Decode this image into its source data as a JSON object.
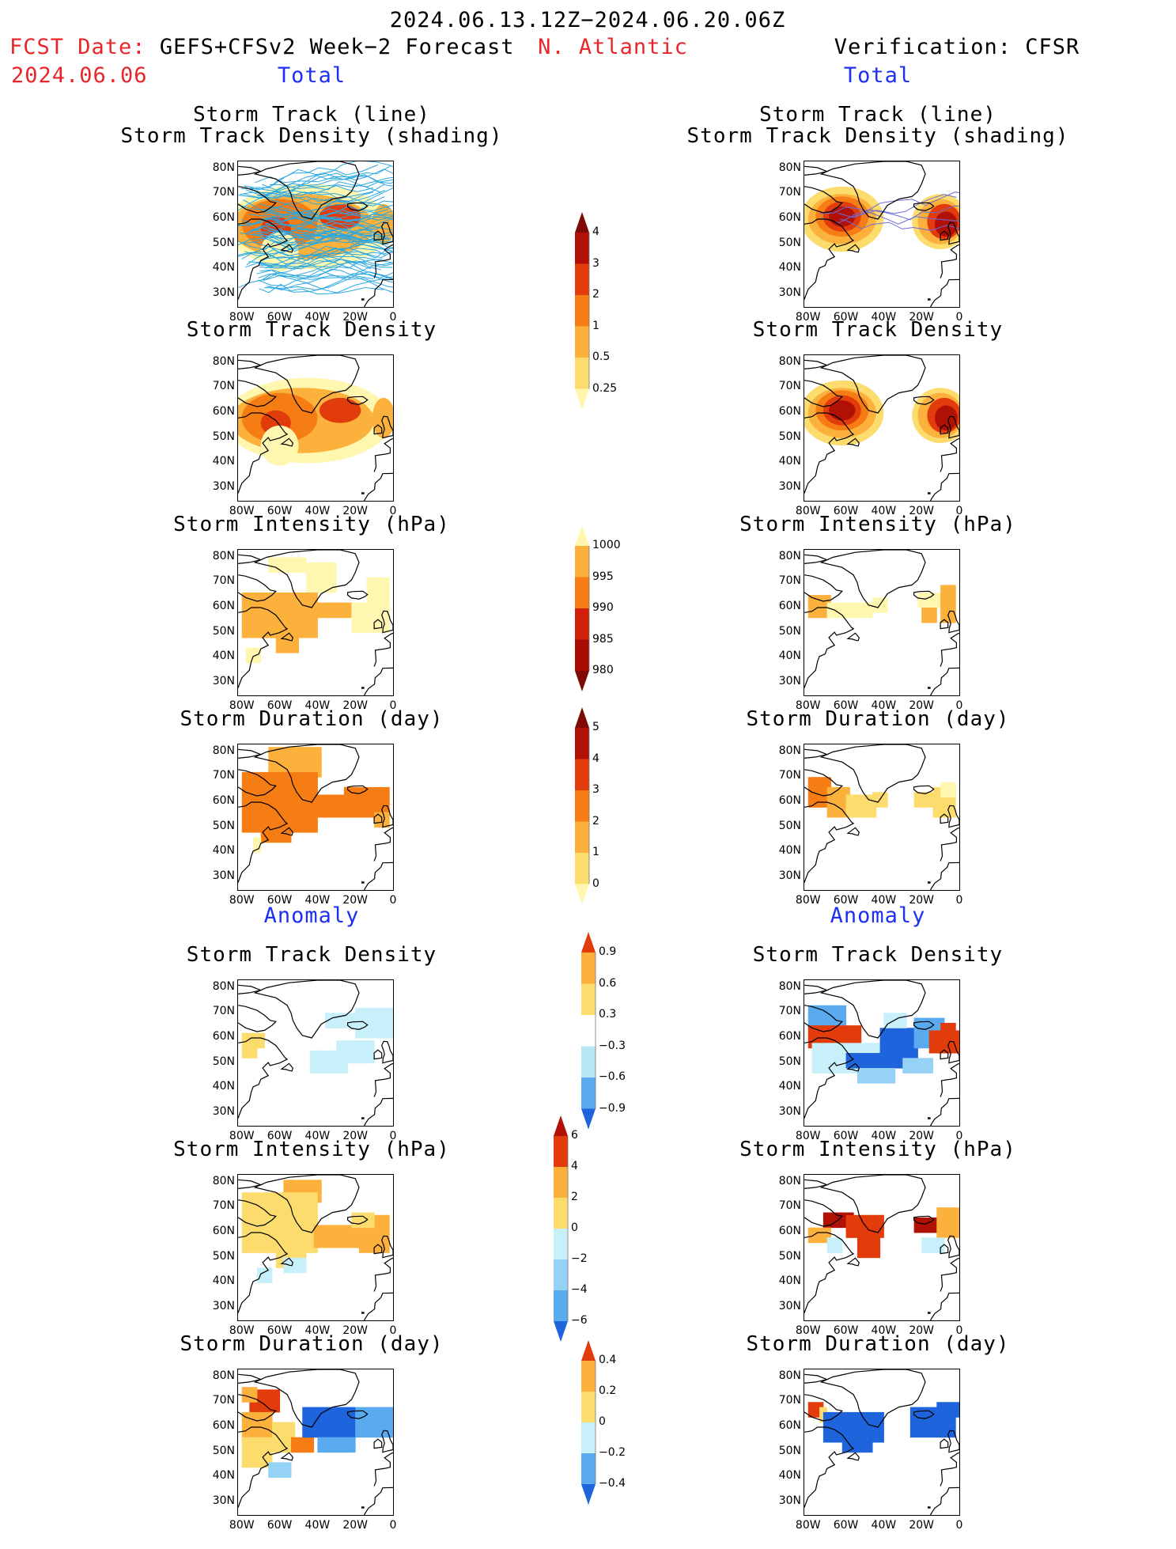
{
  "header": {
    "period": "2024.06.13.12Z−2024.06.20.06Z",
    "fcst_label": "FCST Date:",
    "fcst_model": "GEFS+CFSv2 Week−2 Forecast",
    "fcst_date": "2024.06.06",
    "region": "N. Atlantic",
    "verification": "Verification: CFSR"
  },
  "sections": {
    "total": "Total",
    "anomaly": "Anomaly"
  },
  "panel_titles": {
    "track_line": "Storm Track (line)",
    "track_density_shading": "Storm Track Density (shading)",
    "track_density": "Storm Track Density",
    "intensity": "Storm Intensity (hPa)",
    "duration": "Storm Duration (day)"
  },
  "axes": {
    "lat_labels": [
      "80N",
      "70N",
      "60N",
      "50N",
      "40N",
      "30N"
    ],
    "lon_labels": [
      "80W",
      "60W",
      "40W",
      "20W",
      "0"
    ]
  },
  "colorbars": {
    "density_total": {
      "levels": [
        "0.25",
        "0.5",
        "1",
        "2",
        "3",
        "4"
      ],
      "colors": [
        "#fff7b0",
        "#fddc6e",
        "#fbb13c",
        "#f67d14",
        "#e23c0c",
        "#b11005",
        "#7d0a03"
      ]
    },
    "intensity_total": {
      "levels": [
        "1000",
        "995",
        "990",
        "985",
        "980"
      ],
      "colors": [
        "#fff7b0",
        "#fbb13c",
        "#f67d14",
        "#d2210a",
        "#a80d04",
        "#7d0a03"
      ]
    },
    "duration_total": {
      "levels": [
        "0",
        "1",
        "2",
        "3",
        "4",
        "5"
      ],
      "colors": [
        "#fff7b0",
        "#fddc6e",
        "#fbb13c",
        "#f67d14",
        "#e23c0c",
        "#b11005",
        "#7d0a03"
      ]
    },
    "density_anom": {
      "levels": [
        "0.9",
        "0.6",
        "0.3",
        "−0.3",
        "−0.6",
        "−0.9"
      ],
      "colors": [
        "#e23c0c",
        "#fbb13c",
        "#fddc6e",
        "#ffffff",
        "#b8e6f5",
        "#5aaaf0",
        "#1e64dc"
      ]
    },
    "intensity_anom": {
      "levels": [
        "6",
        "4",
        "2",
        "0",
        "−2",
        "−4",
        "−6"
      ],
      "colors": [
        "#b11005",
        "#e23c0c",
        "#fbb13c",
        "#fddc6e",
        "#c8f0fa",
        "#96d2f5",
        "#5aaaf0",
        "#1e64dc"
      ]
    },
    "duration_anom": {
      "levels": [
        "0.4",
        "0.2",
        "0",
        "−0.2",
        "−0.4"
      ],
      "colors": [
        "#e23c0c",
        "#fbb13c",
        "#fddc6e",
        "#c8f0fa",
        "#5aaaf0",
        "#1e64dc"
      ]
    }
  }
}
